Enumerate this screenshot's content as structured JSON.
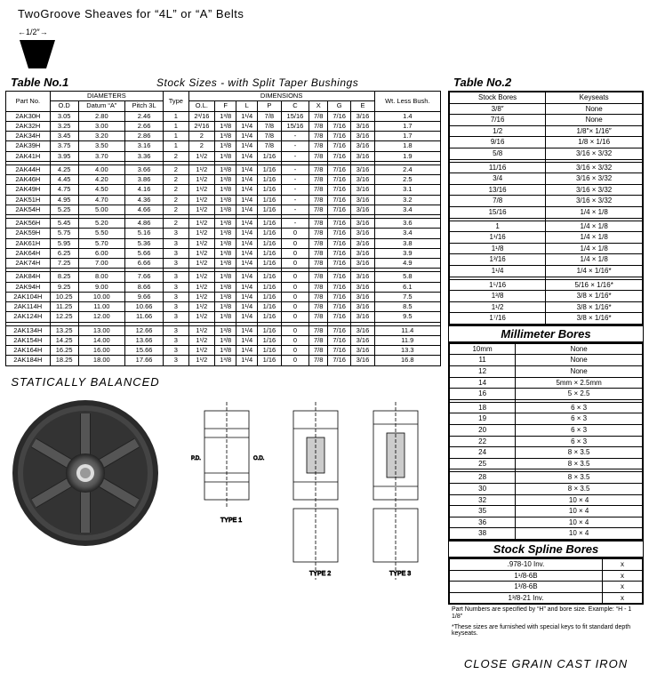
{
  "header": "TwoGroove Sheaves for “4L” or “A” Belts",
  "belt_width": "1/2″",
  "table1_title": "Table No.1",
  "subtitle": "Stock Sizes - with Split Taper Bushings",
  "t1_headers": {
    "part": "Part No.",
    "diameters": "DIAMETERS",
    "od": "O.D",
    "datum": "Datum “A”",
    "pitch": "Pitch 3L",
    "type": "Type",
    "dimensions": "DIMENSIONS",
    "ol": "O.L.",
    "f": "F",
    "l": "L",
    "p": "P",
    "c": "C",
    "x": "X",
    "g": "G",
    "e": "E",
    "wt": "Wt. Less Bush."
  },
  "t1_groups": [
    [
      [
        "2AK30H",
        "3.05",
        "2.80",
        "2.46",
        "1",
        "2³/16",
        "1³/8",
        "1¹/4",
        "7/8",
        "15/16",
        "7/8",
        "7/16",
        "3/16",
        "1.4"
      ],
      [
        "2AK32H",
        "3.25",
        "3.00",
        "2.66",
        "1",
        "2³/16",
        "1³/8",
        "1¹/4",
        "7/8",
        "15/16",
        "7/8",
        "7/16",
        "3/16",
        "1.7"
      ],
      [
        "2AK34H",
        "3.45",
        "3.20",
        "2.86",
        "1",
        "2",
        "1³/8",
        "1¹/4",
        "7/8",
        "-",
        "7/8",
        "7/16",
        "3/16",
        "1.7"
      ],
      [
        "2AK39H",
        "3.75",
        "3.50",
        "3.16",
        "1",
        "2",
        "1³/8",
        "1¹/4",
        "7/8",
        "-",
        "7/8",
        "7/16",
        "3/16",
        "1.8"
      ],
      [
        "2AK41H",
        "3.95",
        "3.70",
        "3.36",
        "2",
        "1¹/2",
        "1³/8",
        "1¹/4",
        "1/16",
        "-",
        "7/8",
        "7/16",
        "3/16",
        "1.9"
      ]
    ],
    [
      [
        "2AK44H",
        "4.25",
        "4.00",
        "3.66",
        "2",
        "1¹/2",
        "1³/8",
        "1¹/4",
        "1/16",
        "-",
        "7/8",
        "7/16",
        "3/16",
        "2.4"
      ],
      [
        "2AK46H",
        "4.45",
        "4.20",
        "3.86",
        "2",
        "1¹/2",
        "1³/8",
        "1¹/4",
        "1/16",
        "-",
        "7/8",
        "7/16",
        "3/16",
        "2.5"
      ],
      [
        "2AK49H",
        "4.75",
        "4.50",
        "4.16",
        "2",
        "1¹/2",
        "1³/8",
        "1¹/4",
        "1/16",
        "-",
        "7/8",
        "7/16",
        "3/16",
        "3.1"
      ],
      [
        "2AK51H",
        "4.95",
        "4.70",
        "4.36",
        "2",
        "1¹/2",
        "1³/8",
        "1¹/4",
        "1/16",
        "-",
        "7/8",
        "7/16",
        "3/16",
        "3.2"
      ],
      [
        "2AK54H",
        "5.25",
        "5.00",
        "4.66",
        "2",
        "1¹/2",
        "1³/8",
        "1¹/4",
        "1/16",
        "-",
        "7/8",
        "7/16",
        "3/16",
        "3.4"
      ]
    ],
    [
      [
        "2AK56H",
        "5.45",
        "5.20",
        "4.86",
        "2",
        "1¹/2",
        "1³/8",
        "1¹/4",
        "1/16",
        "-",
        "7/8",
        "7/16",
        "3/16",
        "3.6"
      ],
      [
        "2AK59H",
        "5.75",
        "5.50",
        "5.16",
        "3",
        "1¹/2",
        "1³/8",
        "1¹/4",
        "1/16",
        "0",
        "7/8",
        "7/16",
        "3/16",
        "3.4"
      ],
      [
        "2AK61H",
        "5.95",
        "5.70",
        "5.36",
        "3",
        "1¹/2",
        "1³/8",
        "1¹/4",
        "1/16",
        "0",
        "7/8",
        "7/16",
        "3/16",
        "3.8"
      ],
      [
        "2AK64H",
        "6.25",
        "6.00",
        "5.66",
        "3",
        "1¹/2",
        "1³/8",
        "1¹/4",
        "1/16",
        "0",
        "7/8",
        "7/16",
        "3/16",
        "3.9"
      ],
      [
        "2AK74H",
        "7.25",
        "7.00",
        "6.66",
        "3",
        "1¹/2",
        "1³/8",
        "1¹/4",
        "1/16",
        "0",
        "7/8",
        "7/16",
        "3/16",
        "4.9"
      ]
    ],
    [
      [
        "2AK84H",
        "8.25",
        "8.00",
        "7.66",
        "3",
        "1¹/2",
        "1³/8",
        "1¹/4",
        "1/16",
        "0",
        "7/8",
        "7/16",
        "3/16",
        "5.8"
      ],
      [
        "2AK94H",
        "9.25",
        "9.00",
        "8.66",
        "3",
        "1¹/2",
        "1³/8",
        "1¹/4",
        "1/16",
        "0",
        "7/8",
        "7/16",
        "3/16",
        "6.1"
      ],
      [
        "2AK104H",
        "10.25",
        "10.00",
        "9.66",
        "3",
        "1¹/2",
        "1³/8",
        "1¹/4",
        "1/16",
        "0",
        "7/8",
        "7/16",
        "3/16",
        "7.5"
      ],
      [
        "2AK114H",
        "11.25",
        "11.00",
        "10.66",
        "3",
        "1¹/2",
        "1³/8",
        "1¹/4",
        "1/16",
        "0",
        "7/8",
        "7/16",
        "3/16",
        "8.5"
      ],
      [
        "2AK124H",
        "12.25",
        "12.00",
        "11.66",
        "3",
        "1¹/2",
        "1³/8",
        "1¹/4",
        "1/16",
        "0",
        "7/8",
        "7/16",
        "3/16",
        "9.5"
      ]
    ],
    [
      [
        "2AK134H",
        "13.25",
        "13.00",
        "12.66",
        "3",
        "1¹/2",
        "1³/8",
        "1¹/4",
        "1/16",
        "0",
        "7/8",
        "7/16",
        "3/16",
        "11.4"
      ],
      [
        "2AK154H",
        "14.25",
        "14.00",
        "13.66",
        "3",
        "1¹/2",
        "1³/8",
        "1¹/4",
        "1/16",
        "0",
        "7/8",
        "7/16",
        "3/16",
        "11.9"
      ],
      [
        "2AK164H",
        "16.25",
        "16.00",
        "15.66",
        "3",
        "1¹/2",
        "1³/8",
        "1¹/4",
        "1/16",
        "0",
        "7/8",
        "7/16",
        "3/16",
        "13.3"
      ],
      [
        "2AK184H",
        "18.25",
        "18.00",
        "17.66",
        "3",
        "1¹/2",
        "1³/8",
        "1¹/4",
        "1/16",
        "0",
        "7/8",
        "7/16",
        "3/16",
        "16.8"
      ]
    ]
  ],
  "table2_title": "Table No.2",
  "t2_headers": {
    "bores": "Stock Bores",
    "keyseats": "Keyseats"
  },
  "t2_groups": [
    [
      [
        "3/8″",
        "None"
      ],
      [
        "7/16",
        "None"
      ],
      [
        "1/2",
        "1/8″× 1/16″"
      ],
      [
        "9/16",
        "1/8 × 1/16"
      ],
      [
        "5/8",
        "3/16 × 3/32"
      ]
    ],
    [
      [
        "11/16",
        "3/16 × 3/32"
      ],
      [
        "3/4",
        "3/16 × 3/32"
      ],
      [
        "13/16",
        "3/16 × 3/32"
      ],
      [
        "7/8",
        "3/16 × 3/32"
      ],
      [
        "15/16",
        "1/4 × 1/8"
      ]
    ],
    [
      [
        "1",
        "1/4 × 1/8"
      ],
      [
        "1¹/16",
        "1/4 × 1/8"
      ],
      [
        "1¹/8",
        "1/4 × 1/8"
      ],
      [
        "1³/16",
        "1/4 × 1/8"
      ],
      [
        "1¹/4",
        "1/4 × 1/16*"
      ]
    ],
    [
      [
        "1⁵/16",
        "5/16 × 1/16*"
      ],
      [
        "1³/8",
        "3/8 × 1/16*"
      ],
      [
        "1¹/2",
        "3/8 × 1/16*"
      ],
      [
        "1⁷/16",
        "3/8 × 1/16*"
      ]
    ]
  ],
  "mm_title": "Millimeter Bores",
  "mm_rows": [
    [
      "10mm",
      "None"
    ],
    [
      "11",
      "None"
    ],
    [
      "12",
      "None"
    ],
    [
      "14",
      "5mm × 2.5mm"
    ],
    [
      "16",
      "5 × 2.5"
    ],
    [
      "",
      ""
    ],
    [
      "18",
      "6 × 3"
    ],
    [
      "19",
      "6 × 3"
    ],
    [
      "20",
      "6 × 3"
    ],
    [
      "22",
      "6 × 3"
    ],
    [
      "24",
      "8 × 3.5"
    ],
    [
      "25",
      "8 × 3.5"
    ],
    [
      "",
      ""
    ],
    [
      "28",
      "8 × 3.5"
    ],
    [
      "30",
      "8 × 3.5"
    ],
    [
      "32",
      "10 × 4"
    ],
    [
      "35",
      "10 × 4"
    ],
    [
      "36",
      "10 × 4"
    ],
    [
      "38",
      "10 × 4"
    ]
  ],
  "spline_title": "Stock Spline Bores",
  "spline_rows": [
    [
      ".978-10 Inv.",
      "x"
    ],
    [
      "1¹/8-6B",
      "x"
    ],
    [
      "1³/8-6B",
      "x"
    ],
    [
      "1³/8-21 Inv.",
      "x"
    ]
  ],
  "footnote1": "Part Numbers are specified by “H” and bore size. Example: “H - 1 1/8”",
  "footnote2": "*These sizes are furnished with special keys to fit standard depth keyseats.",
  "static_balanced": "STATICALLY BALANCED",
  "cast_iron": "CLOSE GRAIN CAST IRON",
  "diagram_labels": {
    "t1": "TYPE 1",
    "t2": "TYPE 2",
    "t3": "TYPE 3",
    "pd": "P.D.",
    "od": "O.D."
  }
}
